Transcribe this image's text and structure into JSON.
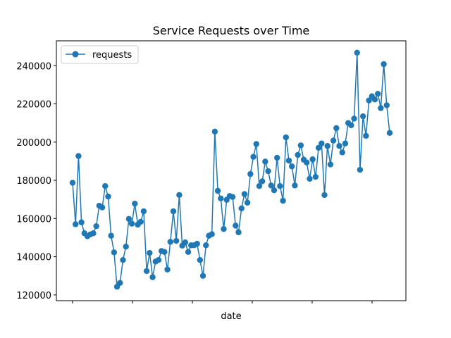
{
  "chart_data": {
    "type": "line",
    "title": "Service Requests over Time",
    "xlabel": "date",
    "ylabel": "",
    "ylim": [
      117000,
      253000
    ],
    "yticks": [
      120000,
      140000,
      160000,
      180000,
      200000,
      220000,
      240000
    ],
    "xtick_count": 6,
    "legend": {
      "placement": "top-left",
      "entries": [
        "requests"
      ]
    },
    "grid": false,
    "color": "#1f77b4",
    "series": [
      {
        "name": "requests",
        "values": [
          178700,
          157000,
          192700,
          158000,
          152300,
          150700,
          151700,
          152300,
          156000,
          166700,
          165800,
          177000,
          171500,
          151000,
          142300,
          124300,
          126300,
          138300,
          145300,
          159800,
          157300,
          167800,
          156800,
          158300,
          163800,
          132500,
          142000,
          129300,
          137500,
          138300,
          143000,
          142500,
          133300,
          147800,
          163800,
          148300,
          172300,
          145800,
          147500,
          142500,
          146000,
          146000,
          146800,
          138300,
          130000,
          146000,
          151000,
          151800,
          205500,
          174500,
          170500,
          154500,
          169800,
          171800,
          171300,
          156300,
          152800,
          165300,
          172800,
          168300,
          183300,
          192300,
          199000,
          177000,
          179500,
          189800,
          184800,
          177300,
          174800,
          191800,
          177000,
          169300,
          202500,
          190300,
          187300,
          177300,
          193300,
          198300,
          190800,
          189300,
          180800,
          191000,
          181800,
          197000,
          199300,
          172300,
          198000,
          188300,
          200800,
          207300,
          198000,
          194600,
          199300,
          210000,
          208800,
          212300,
          246800,
          185500,
          213500,
          203300,
          221800,
          224000,
          222300,
          225300,
          217800,
          240800,
          219300,
          204800
        ]
      }
    ]
  }
}
